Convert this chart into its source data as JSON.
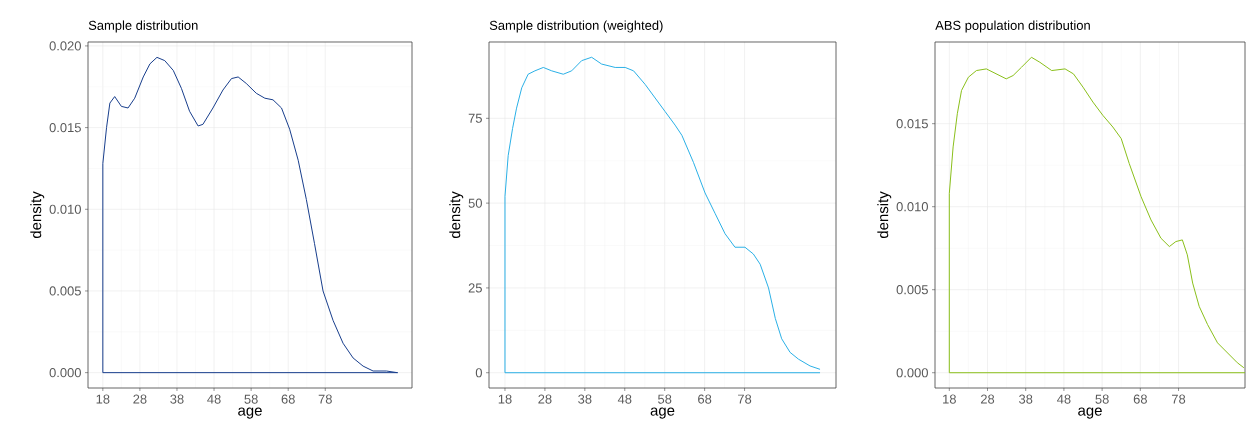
{
  "chart_data": [
    {
      "type": "line",
      "title": "Sample distribution",
      "xlabel": "age",
      "ylabel": "density",
      "color": "#173d8c",
      "grid": true,
      "x": [
        97.6,
        18,
        18,
        19.0,
        19.9,
        21.2,
        23.0,
        24.8,
        26.6,
        28.9,
        30.7,
        32.6,
        34.7,
        37.0,
        39.2,
        41.4,
        43.7,
        45.0,
        47.7,
        50.4,
        52.7,
        54.5,
        56.7,
        59.4,
        61.7,
        63.9,
        66.2,
        68.4,
        70.7,
        72.9,
        75.1,
        77.4,
        80.1,
        82.8,
        85.5,
        88.2,
        90.9,
        94.5,
        97.4
      ],
      "values": [
        0,
        0,
        0.0128,
        0.015,
        0.0165,
        0.0169,
        0.0163,
        0.0162,
        0.0168,
        0.0181,
        0.0189,
        0.0193,
        0.0191,
        0.0185,
        0.0174,
        0.016,
        0.0151,
        0.0152,
        0.0162,
        0.0173,
        0.018,
        0.0181,
        0.0177,
        0.0171,
        0.0168,
        0.0167,
        0.0162,
        0.0149,
        0.013,
        0.0106,
        0.0079,
        0.005,
        0.0032,
        0.0018,
        0.0009,
        0.0004,
        0.0001,
        0.0001,
        0
      ],
      "xlim": [
        14.0,
        101.4
      ],
      "ylim": [
        -0.00094,
        0.02024
      ],
      "xticks": [
        18,
        28,
        38,
        48,
        58,
        68,
        78
      ],
      "yticks": [
        {
          "value": 0,
          "label": "0.000"
        },
        {
          "value": 0.005,
          "label": "0.005"
        },
        {
          "value": 0.01,
          "label": "0.010"
        },
        {
          "value": 0.015,
          "label": "0.015"
        },
        {
          "value": 0.02,
          "label": "0.020"
        }
      ]
    },
    {
      "type": "line",
      "title": "Sample distribution (weighted)",
      "xlabel": "age",
      "ylabel": "density",
      "color": "#2ab0e6",
      "grid": true,
      "x": [
        96.9,
        18,
        18,
        18.8,
        19.9,
        20.9,
        22.2,
        23.8,
        25.5,
        27.6,
        29.7,
        32.6,
        34.7,
        37.2,
        39.7,
        42.2,
        45.6,
        48.1,
        50.2,
        53.1,
        55.6,
        58.1,
        60.6,
        62.3,
        65.2,
        68.1,
        70.6,
        73.1,
        75.6,
        78.1,
        80.2,
        81.9,
        84.0,
        85.7,
        87.3,
        89.4,
        91.5,
        94.4,
        96.9
      ],
      "values": [
        0,
        0,
        52,
        64,
        72,
        78,
        84,
        88,
        89,
        90,
        89,
        88,
        89,
        92,
        93,
        91,
        90,
        90,
        89,
        85,
        81,
        77,
        73,
        70,
        62,
        53,
        47,
        41,
        37,
        37,
        35,
        32,
        25,
        16,
        10,
        6,
        4,
        2,
        1
      ],
      "xlim": [
        14.0,
        100.9
      ],
      "ylim": [
        -4.5,
        97.5
      ],
      "xticks": [
        18,
        28,
        38,
        48,
        58,
        68,
        78
      ],
      "yticks": [
        0,
        25,
        50,
        75
      ]
    },
    {
      "type": "line",
      "title": "ABS population distribution",
      "xlabel": "age",
      "ylabel": "density",
      "color": "#8abf1a",
      "grid": true,
      "x": [
        95.4,
        18,
        18,
        19.0,
        20.1,
        21.2,
        23.0,
        25.1,
        27.7,
        30.3,
        32.9,
        34.7,
        36.9,
        39.5,
        41.7,
        44.8,
        48.3,
        50.5,
        53.0,
        55.6,
        58.2,
        60.8,
        63.0,
        65.1,
        68.2,
        70.8,
        73.4,
        75.6,
        77.3,
        79.0,
        80.3,
        81.7,
        83.4,
        85.6,
        88.2,
        90.8,
        93.4,
        95.1
      ],
      "values": [
        0,
        0,
        0.0108,
        0.0136,
        0.0156,
        0.017,
        0.0178,
        0.0182,
        0.0183,
        0.018,
        0.0177,
        0.0179,
        0.0184,
        0.019,
        0.0187,
        0.0182,
        0.0183,
        0.018,
        0.0172,
        0.0163,
        0.0155,
        0.0148,
        0.0141,
        0.0126,
        0.0106,
        0.0092,
        0.0081,
        0.0076,
        0.0079,
        0.008,
        0.0071,
        0.0054,
        0.004,
        0.0029,
        0.0018,
        0.0012,
        0.0006,
        0.0003
      ],
      "xlim": [
        14.26,
        95.4
      ],
      "ylim": [
        -0.00092,
        0.01992
      ],
      "xticks": [
        18,
        28,
        38,
        48,
        58,
        68,
        78
      ],
      "yticks": [
        {
          "value": 0,
          "label": "0.000"
        },
        {
          "value": 0.005,
          "label": "0.005"
        },
        {
          "value": 0.01,
          "label": "0.010"
        },
        {
          "value": 0.015,
          "label": "0.015"
        }
      ]
    }
  ]
}
